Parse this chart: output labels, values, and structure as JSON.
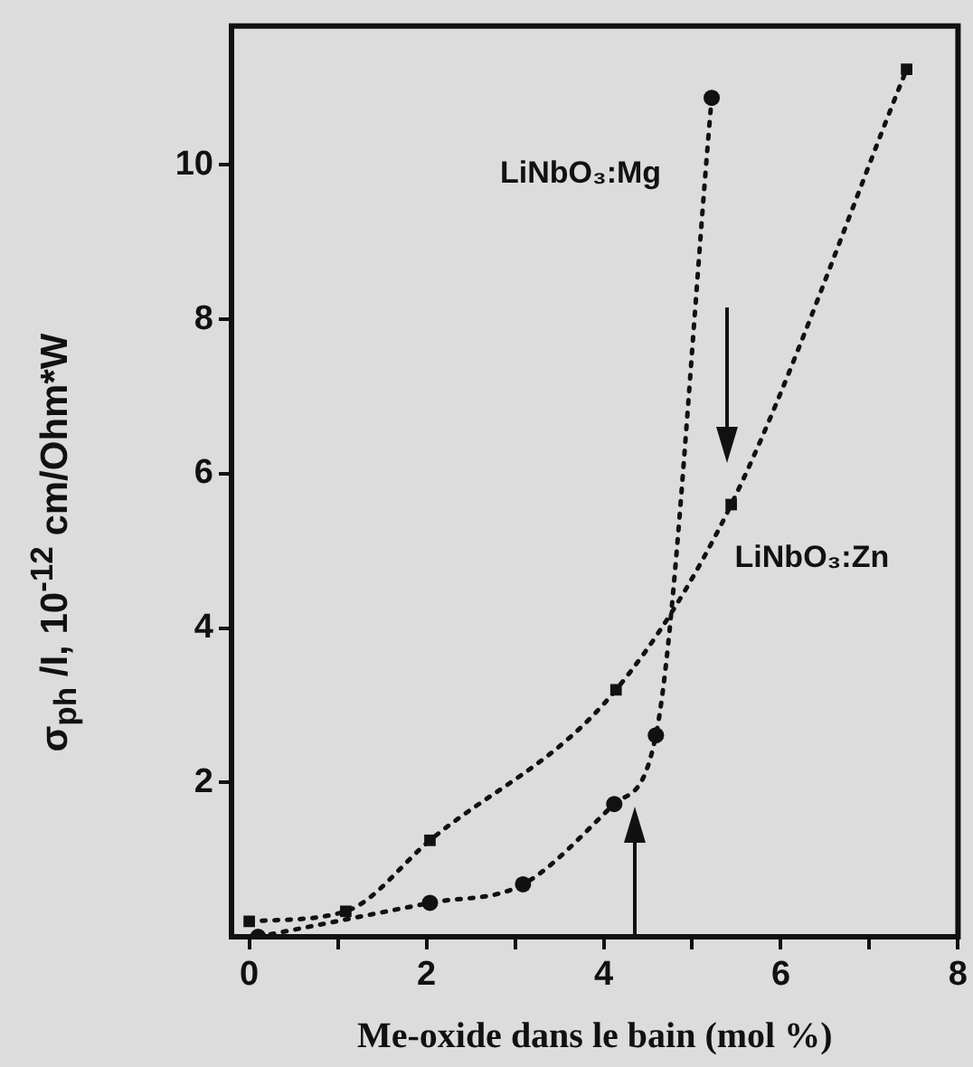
{
  "chart_data": {
    "type": "line",
    "xlabel": "Me-oxide dans le bain (mol %)",
    "ylabel": "σ$_{ph}$ /I, 10$^{-12}$ cm/Ohm*W",
    "xlim": [
      -0.2,
      8
    ],
    "ylim": [
      0,
      11.8
    ],
    "xticks": [
      0,
      {
        "value": 1,
        "label": null
      },
      2,
      {
        "value": 3,
        "label": null
      },
      4,
      {
        "value": 5,
        "label": null
      },
      6,
      {
        "value": 7,
        "label": null
      },
      8
    ],
    "yticks": [
      2,
      4,
      6,
      8,
      10
    ],
    "grid": false,
    "legend": false,
    "line_style": "dotted",
    "series": [
      {
        "name": "LiNbO₃:Mg",
        "color": "#111111",
        "marker": "circle",
        "x": [
          0.1,
          2.04,
          3.09,
          4.12,
          4.59,
          5.22
        ],
        "values": [
          0,
          0.44,
          0.68,
          1.72,
          2.61,
          10.87
        ]
      },
      {
        "name": "LiNbO₃:Zn",
        "color": "#111111",
        "marker": "square",
        "x": [
          0,
          1.09,
          2.04,
          4.14,
          5.44,
          7.42
        ],
        "values": [
          0.2,
          0.33,
          1.25,
          3.2,
          5.6,
          11.24
        ]
      }
    ]
  }
}
